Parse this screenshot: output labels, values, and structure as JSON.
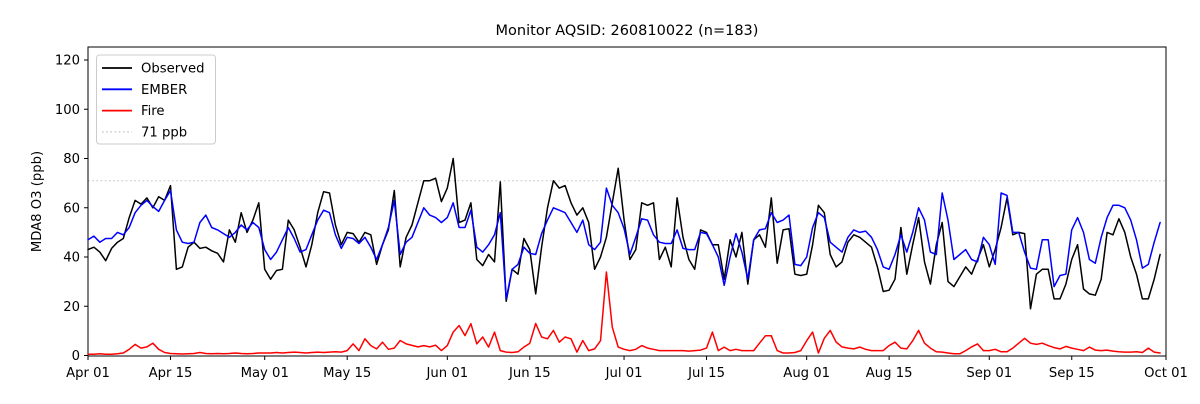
{
  "chart_data": {
    "type": "line",
    "title": "Monitor AQSID: 260810022 (n=183)",
    "ylabel": "MDA8 O3 (ppb)",
    "xlabel": "",
    "n": 183,
    "grid": false,
    "legend_position": "upper left",
    "background_color": "#ffffff",
    "x_tick_labels": [
      "Apr 01",
      "Apr 15",
      "May 01",
      "May 15",
      "Jun 01",
      "Jun 15",
      "Jul 01",
      "Jul 15",
      "Aug 01",
      "Aug 15",
      "Sep 01",
      "Sep 15",
      "Oct 01"
    ],
    "x_tick_days": [
      0,
      14,
      30,
      44,
      61,
      75,
      91,
      105,
      122,
      136,
      153,
      167,
      183
    ],
    "x_range_days": 183,
    "y_ticks": [
      0,
      20,
      40,
      60,
      80,
      100,
      120
    ],
    "ylim": [
      0,
      125.3
    ],
    "threshold": {
      "label": "71 ppb",
      "value": 71,
      "color": "#d3d3d3",
      "style": "dotted"
    },
    "series": [
      {
        "name": "Observed",
        "color": "#000000",
        "values": [
          43,
          44,
          42,
          38.5,
          43.5,
          46,
          47.5,
          56,
          63,
          61.5,
          64,
          60,
          64.5,
          63,
          69,
          35,
          36,
          44,
          46,
          43.5,
          44,
          42.5,
          41.5,
          38,
          51,
          46,
          58,
          50,
          55,
          62,
          35,
          31,
          34.5,
          35,
          55,
          51,
          44,
          36,
          45,
          58,
          66.5,
          66,
          53,
          45,
          50,
          49.5,
          46,
          50,
          49,
          37,
          45,
          51,
          67,
          36,
          48,
          53,
          62,
          71,
          71,
          72,
          62.5,
          68,
          80,
          54,
          55,
          62,
          39,
          36.5,
          41,
          38,
          70.5,
          22,
          35,
          33,
          47.5,
          43,
          25,
          44,
          60,
          71,
          68,
          69,
          62,
          57,
          60,
          54,
          35,
          40,
          48,
          62,
          76,
          55,
          39,
          43,
          62,
          61,
          62,
          39,
          44,
          36,
          64,
          48,
          39,
          35,
          51,
          50,
          45,
          45,
          31,
          47,
          40,
          50,
          29,
          47,
          49,
          44,
          64,
          37.5,
          51,
          51.5,
          33,
          32.5,
          33,
          45,
          61,
          58,
          41,
          36,
          38,
          46,
          49,
          48,
          46,
          44,
          36,
          26,
          26.5,
          31,
          52,
          33,
          45,
          56,
          38,
          29,
          45,
          54,
          30,
          28,
          32,
          36,
          33,
          39,
          45,
          36,
          43,
          52,
          64,
          49,
          50,
          49.5,
          19,
          33,
          35,
          35,
          23,
          23,
          29,
          39,
          45,
          27,
          25,
          24.5,
          31,
          50,
          49,
          55.5,
          50,
          40,
          33,
          23,
          23,
          31,
          41
        ]
      },
      {
        "name": "EMBER",
        "color": "#0000ff",
        "values": [
          47,
          48.5,
          46,
          47.5,
          47.5,
          50,
          49,
          52,
          58,
          61,
          63,
          60.5,
          58.5,
          63,
          67,
          51,
          46,
          45.5,
          46,
          54,
          57,
          52,
          51,
          49.5,
          48,
          50,
          53,
          51,
          54,
          52,
          43,
          39,
          42,
          47,
          52,
          47.5,
          42,
          43,
          49,
          55,
          59,
          58,
          49,
          43.5,
          48,
          47.5,
          45.5,
          48,
          44,
          39,
          45,
          52,
          63,
          41,
          46,
          48,
          54,
          60,
          57,
          56,
          54,
          56,
          62,
          52,
          52,
          59,
          44,
          42,
          45,
          49,
          58,
          23,
          35,
          37,
          44,
          41.5,
          41,
          49.5,
          55,
          60,
          59,
          58,
          54,
          50,
          55,
          45,
          43,
          46,
          68,
          61,
          58,
          51.5,
          41,
          48,
          55.5,
          55,
          49,
          46,
          45.5,
          45.5,
          51,
          43.5,
          43,
          43,
          50,
          49.5,
          45,
          40,
          28.5,
          40,
          49.5,
          42,
          31,
          47,
          51,
          51.5,
          58,
          54,
          55,
          57,
          37,
          36.5,
          40,
          52,
          58,
          56,
          46,
          44,
          42,
          48,
          51,
          50,
          50.5,
          48,
          43,
          36,
          35,
          41,
          49,
          42,
          50,
          60,
          55,
          42,
          41,
          66,
          55,
          39,
          41,
          43,
          39,
          38,
          48,
          45,
          37,
          66,
          65,
          50,
          50,
          42,
          35.5,
          35,
          47,
          47,
          28,
          32.5,
          33,
          51,
          56,
          50,
          39,
          37.5,
          48,
          56,
          61,
          61,
          60,
          55,
          47,
          35.5,
          37,
          46,
          54
        ]
      },
      {
        "name": "Fire",
        "color": "#ff0000",
        "values": [
          0.5,
          0.5,
          0.7,
          0.5,
          0.5,
          0.7,
          1,
          2.5,
          4.5,
          3,
          3.5,
          5,
          2.5,
          1.2,
          0.8,
          0.7,
          0.6,
          0.7,
          0.8,
          1.2,
          0.8,
          0.7,
          0.8,
          0.7,
          0.8,
          1,
          0.8,
          0.7,
          0.8,
          1,
          1,
          1,
          1.2,
          1,
          1.2,
          1.4,
          1.2,
          1,
          1.2,
          1.4,
          1.2,
          1.4,
          1.5,
          1.4,
          2,
          4.7,
          2,
          6.8,
          4,
          2.7,
          5.4,
          2.5,
          3,
          6.1,
          4.7,
          4.1,
          3.5,
          4,
          3.5,
          4.2,
          2,
          4,
          9.5,
          12.2,
          8.1,
          12.9,
          4.7,
          7.5,
          3.4,
          9.5,
          2,
          1.4,
          1.2,
          1.5,
          3.4,
          5,
          13,
          7.5,
          6.8,
          10.2,
          5.4,
          7.5,
          6.8,
          1.4,
          6.1,
          2,
          2.7,
          6,
          33.9,
          11.5,
          3.4,
          2.5,
          2,
          2.5,
          4,
          3,
          2.5,
          2,
          2,
          2,
          2,
          2,
          1.8,
          2,
          2.2,
          3,
          9.5,
          2,
          3.4,
          2,
          2.5,
          2,
          2,
          2,
          5,
          8,
          8,
          2,
          1,
          1,
          1.2,
          2,
          6,
          9.5,
          1,
          7,
          10.2,
          5.5,
          3.5,
          3,
          2.7,
          3.4,
          2.5,
          2,
          2,
          2,
          4,
          5.4,
          3,
          2.7,
          6,
          10.2,
          5,
          3,
          1.5,
          1.4,
          1,
          0.7,
          0.7,
          2,
          3.5,
          4.7,
          2,
          2,
          2.5,
          1.5,
          1.5,
          3,
          5,
          7,
          5,
          4.5,
          5,
          4,
          3.2,
          2.7,
          3.7,
          3,
          2.5,
          2,
          3.4,
          2.2,
          2,
          2.2,
          1.8,
          1.5,
          1.4,
          1.4,
          1.5,
          1.2,
          3,
          1.4,
          1
        ]
      }
    ]
  }
}
